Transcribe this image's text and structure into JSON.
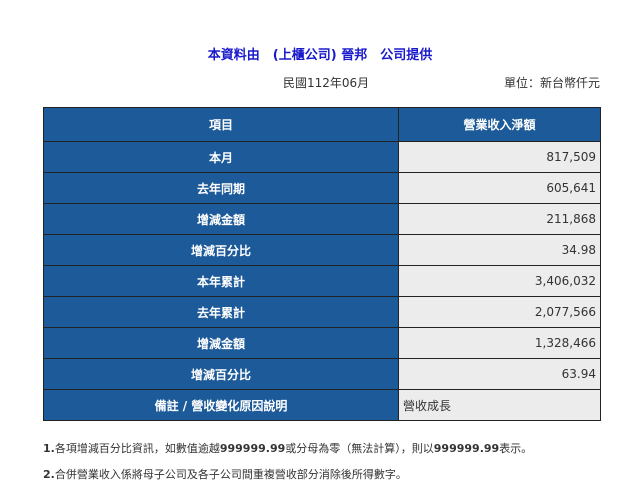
{
  "header": {
    "title": "本資料由　(上櫃公司) 晉邦　公司提供",
    "period": "民國112年06月",
    "unit": "單位：新台幣仟元"
  },
  "table": {
    "columns": [
      "項目",
      "營業收入淨額"
    ],
    "rows": [
      {
        "label": "本月",
        "value": "817,509"
      },
      {
        "label": "去年同期",
        "value": "605,641"
      },
      {
        "label": "增減金額",
        "value": "211,868"
      },
      {
        "label": "增減百分比",
        "value": "34.98"
      },
      {
        "label": "本年累計",
        "value": "3,406,032"
      },
      {
        "label": "去年累計",
        "value": "2,077,566"
      },
      {
        "label": "增減金額",
        "value": "1,328,466"
      },
      {
        "label": "增減百分比",
        "value": "63.94"
      }
    ],
    "remark": {
      "label": "備註 / 營收變化原因說明",
      "value": "營收成長"
    }
  },
  "notes": {
    "n1": {
      "num": "1.",
      "a": "各項增減百分比資訊，如數值逾越",
      "b": "999999.99",
      "c": "或分母為零（無法計算），則以",
      "d": "999999.99",
      "e": "表示。"
    },
    "n2": {
      "num": "2.",
      "text": "合併營業收入係將母子公司及各子公司間重複營收部分消除後所得數字。"
    }
  }
}
